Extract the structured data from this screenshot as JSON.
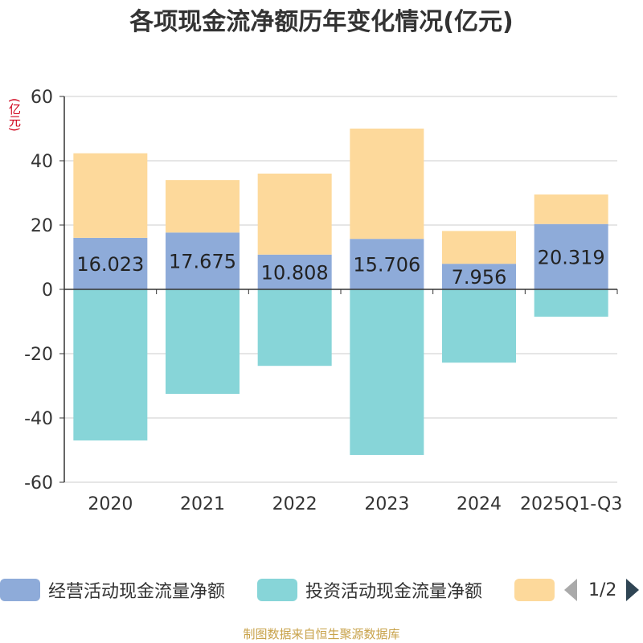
{
  "title": "各项现金流净额历年变化情况(亿元)",
  "unit_label": "(亿元)",
  "source": "制图数据来自恒生聚源数据库",
  "pager": {
    "text": "1/2"
  },
  "colors": {
    "operating": "#8eabd9",
    "investing": "#87d5d8",
    "financing": "#fdd99b",
    "grid": "#cccccc",
    "axis": "#333333"
  },
  "legend": [
    {
      "label": "经营活动现金流量净额",
      "color": "#8eabd9"
    },
    {
      "label": "投资活动现金流量净额",
      "color": "#87d5d8"
    },
    {
      "label": "",
      "color": "#fdd99b"
    }
  ],
  "chart_data": {
    "type": "bar",
    "stacked": true,
    "title": "各项现金流净额历年变化情况(亿元)",
    "ylabel": "(亿元)",
    "ylim": [
      -60,
      60
    ],
    "yticks": [
      60,
      40,
      20,
      0,
      -20,
      -40,
      -60
    ],
    "categories": [
      "2020",
      "2021",
      "2022",
      "2023",
      "2024",
      "2025Q1-Q3"
    ],
    "series": [
      {
        "name": "经营活动现金流量净额",
        "values": [
          16.023,
          17.675,
          10.808,
          15.706,
          7.956,
          20.319
        ],
        "labels": [
          "16.023",
          "17.675",
          "10.808",
          "15.706",
          "7.956",
          "20.319"
        ]
      },
      {
        "name": "投资活动现金流量净额",
        "values": [
          -47.0,
          -32.5,
          -23.8,
          -51.5,
          -22.8,
          -8.5
        ]
      },
      {
        "name": "",
        "values": [
          26.3,
          16.3,
          25.2,
          34.3,
          10.2,
          9.2
        ]
      }
    ]
  }
}
